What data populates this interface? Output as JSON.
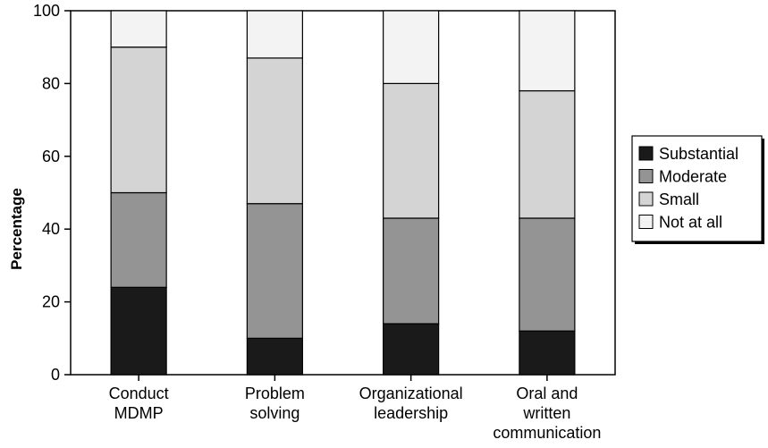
{
  "chart_data": {
    "type": "bar",
    "stacked": true,
    "ylabel": "Percentage",
    "ylim": [
      0,
      100
    ],
    "yticks": [
      0,
      20,
      40,
      60,
      80,
      100
    ],
    "categories": [
      [
        "Conduct",
        "MDMP"
      ],
      [
        "Problem",
        "solving"
      ],
      [
        "Organizational",
        "leadership"
      ],
      [
        "Oral and",
        "written",
        "communication"
      ]
    ],
    "series": [
      {
        "name": "Substantial",
        "color": "#1a1a1a",
        "values": [
          24,
          10,
          14,
          12
        ]
      },
      {
        "name": "Moderate",
        "color": "#949494",
        "values": [
          26,
          37,
          29,
          31
        ]
      },
      {
        "name": "Small",
        "color": "#d4d4d4",
        "values": [
          40,
          40,
          37,
          35
        ]
      },
      {
        "name": "Not at all",
        "color": "#f3f3f3",
        "values": [
          10,
          13,
          20,
          22
        ]
      }
    ],
    "legend": "right",
    "grid": false
  }
}
